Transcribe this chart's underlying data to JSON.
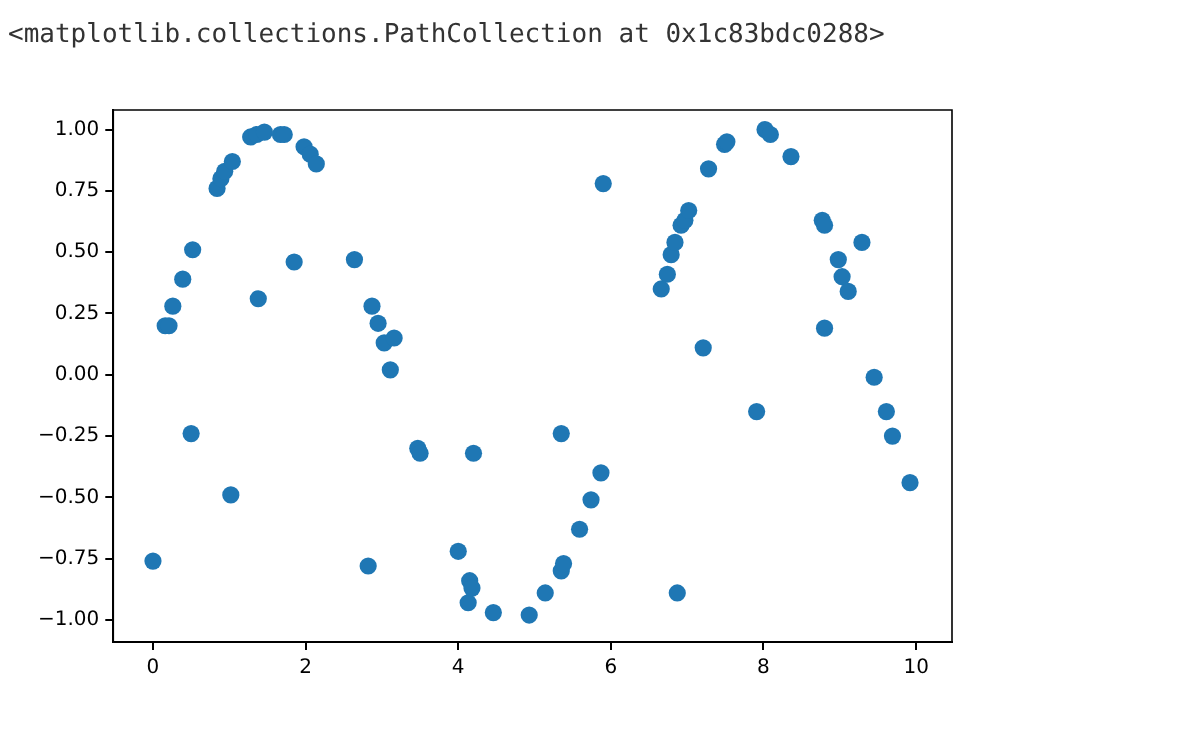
{
  "chart_data": {
    "type": "scatter",
    "annotations": [
      "<matplotlib.collections.PathCollection at 0x1c83bdc0288>"
    ],
    "x": [
      0,
      0.16,
      0.21,
      0.26,
      0.39,
      0.52,
      0.5,
      1.02,
      0.84,
      0.89,
      0.94,
      1.04,
      1.28,
      1.36,
      1.46,
      1.38,
      1.67,
      1.72,
      1.85,
      1.98,
      2.06,
      2.14,
      2.64,
      2.82,
      2.87,
      2.95,
      3.03,
      3.16,
      3.11,
      3.47,
      3.5,
      4.0,
      4.15,
      4.13,
      4.2,
      4.18,
      4.46,
      4.93,
      5.14,
      5.35,
      5.35,
      5.38,
      5.59,
      5.74,
      5.87,
      5.9,
      6.66,
      6.74,
      6.79,
      6.84,
      6.92,
      6.97,
      7.02,
      6.87,
      7.21,
      7.28,
      7.49,
      7.52,
      7.91,
      8.02,
      8.09,
      8.36,
      8.77,
      8.8,
      8.8,
      8.98,
      9.03,
      9.11,
      9.29,
      9.45,
      9.61,
      9.69,
      9.92
    ],
    "series": [
      {
        "color": "#1f77b4",
        "values": [
          -0.76,
          0.2,
          0.2,
          0.28,
          0.39,
          0.51,
          -0.24,
          -0.49,
          0.76,
          0.8,
          0.83,
          0.87,
          0.97,
          0.98,
          0.99,
          0.31,
          0.98,
          0.98,
          0.46,
          0.93,
          0.9,
          0.86,
          0.47,
          -0.78,
          0.28,
          0.21,
          0.13,
          0.15,
          0.02,
          -0.3,
          -0.32,
          -0.72,
          -0.84,
          -0.93,
          -0.32,
          -0.87,
          -0.97,
          -0.98,
          -0.89,
          -0.24,
          -0.8,
          -0.77,
          -0.63,
          -0.51,
          -0.4,
          0.78,
          0.35,
          0.41,
          0.49,
          0.54,
          0.61,
          0.63,
          0.67,
          -0.89,
          0.11,
          0.84,
          0.94,
          0.95,
          -0.15,
          1.0,
          0.98,
          0.89,
          0.63,
          0.61,
          0.19,
          0.47,
          0.4,
          0.34,
          0.54,
          -0.01,
          -0.15,
          -0.25,
          -0.44
        ]
      }
    ],
    "xlim": [
      -0.52,
      10.47
    ],
    "xticks": [
      0,
      2,
      4,
      6,
      8,
      10
    ],
    "ylim": [
      -1.09,
      1.08
    ],
    "yticks": [
      {
        "value": -1,
        "label": "−1.00"
      },
      {
        "value": -0.75,
        "label": "−0.75"
      },
      {
        "value": -0.5,
        "label": "−0.50"
      },
      {
        "value": -0.25,
        "label": "−0.25"
      },
      {
        "value": 0,
        "label": "0.00"
      },
      {
        "value": 0.25,
        "label": "0.25"
      },
      {
        "value": 0.5,
        "label": "0.50"
      },
      {
        "value": 0.75,
        "label": "0.75"
      },
      {
        "value": 1,
        "label": "1.00"
      }
    ],
    "grid": false,
    "legend": false,
    "marker": "circle"
  }
}
